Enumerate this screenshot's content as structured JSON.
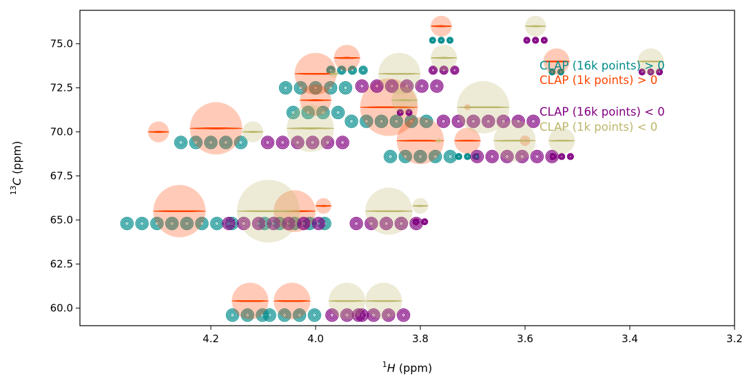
{
  "chart_data": {
    "type": "contour",
    "title": "",
    "xlabel": {
      "sup": "1",
      "italic": "H",
      "rest": " (ppm)"
    },
    "ylabel": {
      "sup": "13",
      "italic": "C",
      "rest": " (ppm)"
    },
    "xlim": [
      4.45,
      3.2
    ],
    "ylim": [
      76.9,
      59.0
    ],
    "xticks": [
      4.2,
      4.0,
      3.8,
      3.6,
      3.4,
      3.2
    ],
    "xtick_labels": [
      "4.2",
      "4.0",
      "3.8",
      "3.6",
      "3.4",
      "3.2"
    ],
    "yticks": [
      60.0,
      62.5,
      65.0,
      67.5,
      70.0,
      72.5,
      75.0
    ],
    "ytick_labels": [
      "60.0",
      "62.5",
      "65.0",
      "67.5",
      "70.0",
      "72.5",
      "75.0"
    ],
    "legend_position": "upper-right",
    "series": [
      {
        "name": "CLAP (16k points) > 0",
        "color": "#008b8b",
        "peaks": [
          {
            "x": 4.13,
            "y": 59.6,
            "w": 0.012,
            "h": 0.35,
            "n": 3
          },
          {
            "x": 4.045,
            "y": 59.6,
            "w": 0.012,
            "h": 0.35,
            "n": 4
          },
          {
            "x": 4.26,
            "y": 64.8,
            "w": 0.012,
            "h": 0.35,
            "n": 8
          },
          {
            "x": 4.04,
            "y": 64.8,
            "w": 0.012,
            "h": 0.35,
            "n": 5
          },
          {
            "x": 4.2,
            "y": 69.4,
            "w": 0.012,
            "h": 0.35,
            "n": 5
          },
          {
            "x": 3.8,
            "y": 68.6,
            "w": 0.012,
            "h": 0.35,
            "n": 5
          },
          {
            "x": 3.71,
            "y": 68.6,
            "w": 0.006,
            "h": 0.35,
            "n": 3
          },
          {
            "x": 3.86,
            "y": 70.6,
            "w": 0.012,
            "h": 0.35,
            "n": 6
          },
          {
            "x": 4.0,
            "y": 71.1,
            "w": 0.012,
            "h": 0.3,
            "n": 4
          },
          {
            "x": 4.0,
            "y": 72.5,
            "w": 0.012,
            "h": 0.35,
            "n": 5
          },
          {
            "x": 3.94,
            "y": 73.5,
            "w": 0.008,
            "h": 0.2,
            "n": 4
          },
          {
            "x": 3.54,
            "y": 73.4,
            "w": 0.006,
            "h": 0.35,
            "n": 2
          },
          {
            "x": 3.76,
            "y": 75.2,
            "w": 0.006,
            "h": 0.35,
            "n": 3
          }
        ]
      },
      {
        "name": "CLAP (1k points) > 0",
        "color": "#ff4500",
        "peaks": [
          {
            "x": 4.125,
            "y": 60.4,
            "w": 0.035,
            "h": 0.35
          },
          {
            "x": 4.045,
            "y": 60.4,
            "w": 0.035,
            "h": 0.35
          },
          {
            "x": 4.26,
            "y": 65.5,
            "w": 0.05,
            "h": 0.45
          },
          {
            "x": 4.04,
            "y": 65.5,
            "w": 0.04,
            "h": 0.4
          },
          {
            "x": 3.985,
            "y": 65.8,
            "w": 0.015,
            "h": 0.2
          },
          {
            "x": 4.19,
            "y": 70.2,
            "w": 0.05,
            "h": 0.4
          },
          {
            "x": 4.3,
            "y": 70.0,
            "w": 0.02,
            "h": 0.15
          },
          {
            "x": 3.8,
            "y": 69.5,
            "w": 0.045,
            "h": 0.45
          },
          {
            "x": 3.71,
            "y": 69.5,
            "w": 0.025,
            "h": 0.25
          },
          {
            "x": 3.6,
            "y": 69.5,
            "w": 0.01,
            "h": 0.1
          },
          {
            "x": 3.71,
            "y": 71.4,
            "w": 0.006,
            "h": 0.1
          },
          {
            "x": 3.86,
            "y": 71.4,
            "w": 0.055,
            "h": 0.45
          },
          {
            "x": 4.0,
            "y": 71.8,
            "w": 0.03,
            "h": 0.2
          },
          {
            "x": 4.0,
            "y": 73.3,
            "w": 0.04,
            "h": 0.5
          },
          {
            "x": 3.94,
            "y": 74.2,
            "w": 0.025,
            "h": 0.25
          },
          {
            "x": 3.54,
            "y": 74.0,
            "w": 0.025,
            "h": 0.25
          },
          {
            "x": 3.76,
            "y": 76.0,
            "w": 0.02,
            "h": 0.25
          }
        ]
      },
      {
        "name": "CLAP (16k points) < 0",
        "color": "#800080",
        "peaks": [
          {
            "x": 3.94,
            "y": 59.6,
            "w": 0.012,
            "h": 0.35,
            "n": 3
          },
          {
            "x": 3.875,
            "y": 59.6,
            "w": 0.012,
            "h": 0.35,
            "n": 4
          },
          {
            "x": 4.08,
            "y": 64.8,
            "w": 0.012,
            "h": 0.35,
            "n": 7
          },
          {
            "x": 3.865,
            "y": 64.8,
            "w": 0.012,
            "h": 0.35,
            "n": 5
          },
          {
            "x": 3.8,
            "y": 64.9,
            "w": 0.006,
            "h": 0.2,
            "n": 2
          },
          {
            "x": 4.02,
            "y": 69.4,
            "w": 0.012,
            "h": 0.35,
            "n": 6
          },
          {
            "x": 3.62,
            "y": 68.6,
            "w": 0.012,
            "h": 0.35,
            "n": 6
          },
          {
            "x": 3.53,
            "y": 68.6,
            "w": 0.006,
            "h": 0.35,
            "n": 3
          },
          {
            "x": 3.67,
            "y": 70.6,
            "w": 0.012,
            "h": 0.35,
            "n": 7
          },
          {
            "x": 3.83,
            "y": 71.1,
            "w": 0.006,
            "h": 0.2,
            "n": 2
          },
          {
            "x": 3.84,
            "y": 72.6,
            "w": 0.012,
            "h": 0.35,
            "n": 6
          },
          {
            "x": 3.755,
            "y": 73.5,
            "w": 0.008,
            "h": 0.2,
            "n": 3
          },
          {
            "x": 3.36,
            "y": 73.4,
            "w": 0.006,
            "h": 0.35,
            "n": 3
          },
          {
            "x": 3.58,
            "y": 75.2,
            "w": 0.006,
            "h": 0.35,
            "n": 3
          }
        ]
      },
      {
        "name": "CLAP (1k points) < 0",
        "color": "#bdb76b",
        "peaks": [
          {
            "x": 3.94,
            "y": 60.4,
            "w": 0.035,
            "h": 0.35
          },
          {
            "x": 3.87,
            "y": 60.4,
            "w": 0.035,
            "h": 0.35
          },
          {
            "x": 4.09,
            "y": 65.5,
            "w": 0.06,
            "h": 0.45
          },
          {
            "x": 3.86,
            "y": 65.5,
            "w": 0.045,
            "h": 0.45
          },
          {
            "x": 3.8,
            "y": 65.8,
            "w": 0.015,
            "h": 0.2
          },
          {
            "x": 4.01,
            "y": 70.2,
            "w": 0.045,
            "h": 0.4
          },
          {
            "x": 4.12,
            "y": 70.0,
            "w": 0.02,
            "h": 0.15
          },
          {
            "x": 3.62,
            "y": 69.5,
            "w": 0.04,
            "h": 0.45
          },
          {
            "x": 3.53,
            "y": 69.5,
            "w": 0.025,
            "h": 0.25
          },
          {
            "x": 3.765,
            "y": 69.5,
            "w": 0.005,
            "h": 0.08
          },
          {
            "x": 3.68,
            "y": 71.4,
            "w": 0.05,
            "h": 0.45
          },
          {
            "x": 3.83,
            "y": 71.8,
            "w": 0.025,
            "h": 0.2
          },
          {
            "x": 3.84,
            "y": 73.3,
            "w": 0.04,
            "h": 0.5
          },
          {
            "x": 3.965,
            "y": 73.3,
            "w": 0.008,
            "h": 0.12
          },
          {
            "x": 3.755,
            "y": 74.2,
            "w": 0.025,
            "h": 0.25
          },
          {
            "x": 3.36,
            "y": 74.0,
            "w": 0.025,
            "h": 0.25
          },
          {
            "x": 3.58,
            "y": 76.0,
            "w": 0.02,
            "h": 0.25
          }
        ]
      }
    ]
  }
}
